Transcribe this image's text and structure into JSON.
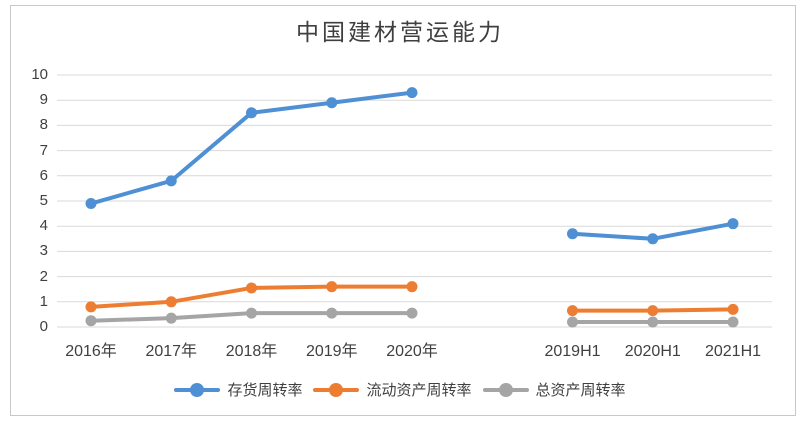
{
  "colors": {
    "background": "#FFFFFF",
    "frame_border": "#C8C8C8",
    "gridline": "#D9D9D9",
    "axis_text": "#404040",
    "title_text": "#3F3F3F"
  },
  "chart_data": {
    "type": "line",
    "title": "中国建材营运能力",
    "categories": [
      "2016年",
      "2017年",
      "2018年",
      "2019年",
      "2020年",
      "",
      "2019H1",
      "2020H1",
      "2021H1"
    ],
    "series": [
      {
        "id": "inventory-turnover",
        "name": "存货周转率",
        "color": "#4E90D3",
        "values": [
          4.9,
          5.8,
          8.5,
          8.9,
          9.3,
          null,
          3.7,
          3.5,
          4.1
        ]
      },
      {
        "id": "current-asset-turnover",
        "name": "流动资产周转率",
        "color": "#ED7D31",
        "values": [
          0.8,
          1.0,
          1.55,
          1.6,
          1.6,
          null,
          0.65,
          0.65,
          0.7
        ]
      },
      {
        "id": "total-asset-turnover",
        "name": "总资产周转率",
        "color": "#A5A5A5",
        "values": [
          0.25,
          0.35,
          0.55,
          0.55,
          0.55,
          null,
          0.2,
          0.2,
          0.2
        ]
      }
    ],
    "xlabel": "",
    "ylabel": "",
    "ylim": [
      0,
      10
    ],
    "ytick_step": 1,
    "grid": true,
    "legend_position": "bottom"
  }
}
